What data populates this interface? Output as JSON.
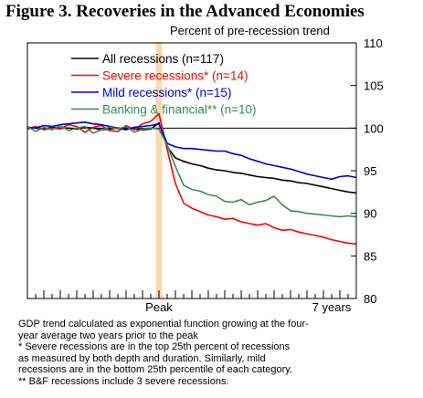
{
  "title": "Figure 3. Recoveries in the Advanced Economies",
  "chart_data": {
    "type": "line",
    "title": "Figure 3. Recoveries in the Advanced Economies",
    "subtitle": "Percent of pre-recession trend",
    "ylim": [
      80,
      110
    ],
    "yticks": [
      80,
      85,
      90,
      95,
      100,
      105,
      110
    ],
    "y_axis_side": "right",
    "xlim": [
      -32,
      48
    ],
    "x_tick_labels": [
      {
        "x": 0,
        "label": "Peak"
      },
      {
        "x": 42,
        "label": "7 years"
      }
    ],
    "reference_line": 100,
    "peak_band": {
      "x": 0
    },
    "legend": "top-left",
    "series": [
      {
        "name": "All recessions (n=117)",
        "color": "#000000",
        "x": [
          -32,
          -30,
          -28,
          -26,
          -24,
          -22,
          -20,
          -18,
          -16,
          -14,
          -12,
          -10,
          -8,
          -6,
          -4,
          -2,
          0,
          2,
          4,
          6,
          8,
          10,
          12,
          14,
          16,
          18,
          20,
          22,
          24,
          26,
          28,
          30,
          32,
          34,
          36,
          38,
          40,
          42,
          44,
          46,
          48
        ],
        "values": [
          100.1,
          100.0,
          99.9,
          100.1,
          100.0,
          100.0,
          99.9,
          100.1,
          100.0,
          99.8,
          99.9,
          100.0,
          100.0,
          99.9,
          99.8,
          99.9,
          100.6,
          97.8,
          96.5,
          96.1,
          95.8,
          95.6,
          95.3,
          95.1,
          95.0,
          94.8,
          94.7,
          94.5,
          94.3,
          94.2,
          94.1,
          93.9,
          93.8,
          93.6,
          93.5,
          93.3,
          93.1,
          92.9,
          92.7,
          92.5,
          92.4
        ]
      },
      {
        "name": "Severe recessions* (n=14)",
        "color": "#ff0000",
        "x": [
          -32,
          -30,
          -28,
          -26,
          -24,
          -22,
          -20,
          -18,
          -16,
          -14,
          -12,
          -10,
          -8,
          -6,
          -4,
          -2,
          0,
          2,
          4,
          6,
          8,
          10,
          12,
          14,
          16,
          18,
          20,
          22,
          24,
          26,
          28,
          30,
          32,
          34,
          36,
          38,
          40,
          42,
          44,
          46,
          48
        ],
        "values": [
          99.9,
          100.2,
          99.8,
          100.0,
          99.9,
          100.4,
          100.2,
          99.5,
          100.1,
          100.3,
          99.7,
          99.6,
          100.3,
          99.8,
          100.5,
          100.8,
          101.7,
          97.5,
          93.5,
          91.2,
          90.6,
          90.2,
          89.8,
          89.6,
          89.3,
          89.4,
          89.0,
          88.8,
          88.6,
          88.8,
          88.3,
          88.0,
          88.1,
          87.8,
          87.6,
          87.4,
          87.2,
          86.9,
          86.7,
          86.5,
          86.4
        ]
      },
      {
        "name": "Mild recessions* (n=15)",
        "color": "#0000cc",
        "x": [
          -32,
          -30,
          -28,
          -26,
          -24,
          -22,
          -20,
          -18,
          -16,
          -14,
          -12,
          -10,
          -8,
          -6,
          -4,
          -2,
          0,
          2,
          4,
          6,
          8,
          10,
          12,
          14,
          16,
          18,
          20,
          22,
          24,
          26,
          28,
          30,
          32,
          34,
          36,
          38,
          40,
          42,
          44,
          46,
          48
        ],
        "values": [
          100.1,
          100.0,
          100.3,
          100.2,
          100.4,
          100.5,
          100.6,
          100.7,
          100.5,
          100.4,
          100.2,
          100.0,
          99.8,
          100.1,
          100.2,
          100.3,
          100.5,
          98.2,
          97.8,
          97.6,
          97.6,
          97.5,
          97.4,
          97.3,
          97.3,
          97.0,
          96.8,
          96.4,
          96.1,
          95.8,
          95.6,
          95.4,
          95.2,
          94.9,
          94.6,
          94.4,
          94.2,
          94.0,
          94.3,
          94.4,
          94.2
        ]
      },
      {
        "name": "Banking & financial** (n=10)",
        "color": "#3a8a5a",
        "x": [
          -32,
          -30,
          -28,
          -26,
          -24,
          -22,
          -20,
          -18,
          -16,
          -14,
          -12,
          -10,
          -8,
          -6,
          -4,
          -2,
          0,
          2,
          4,
          6,
          8,
          10,
          12,
          14,
          16,
          18,
          20,
          22,
          24,
          26,
          28,
          30,
          32,
          34,
          36,
          38,
          40,
          42,
          44,
          46,
          48
        ],
        "values": [
          100.2,
          99.6,
          100.1,
          99.8,
          100.3,
          99.7,
          100.0,
          100.2,
          99.4,
          99.8,
          100.1,
          99.9,
          100.2,
          99.5,
          99.9,
          100.0,
          99.9,
          98.0,
          95.5,
          93.3,
          92.8,
          92.6,
          92.2,
          92.0,
          91.4,
          91.3,
          91.6,
          91.0,
          91.3,
          91.5,
          92.0,
          91.0,
          90.3,
          90.2,
          90.0,
          89.9,
          89.8,
          89.7,
          89.6,
          89.7,
          89.6
        ]
      }
    ]
  },
  "notes": [
    "GDP trend calculated as exponential function growing at the four-",
    "year average two years prior to the peak",
    "* Severe recessions are in the top 25th percent of recessions",
    "as measured by both depth and duration.  Similarly, mild",
    "recessions are in the bottom 25th percentile of each category.",
    "** B&F recessions include 3 severe recessions."
  ]
}
